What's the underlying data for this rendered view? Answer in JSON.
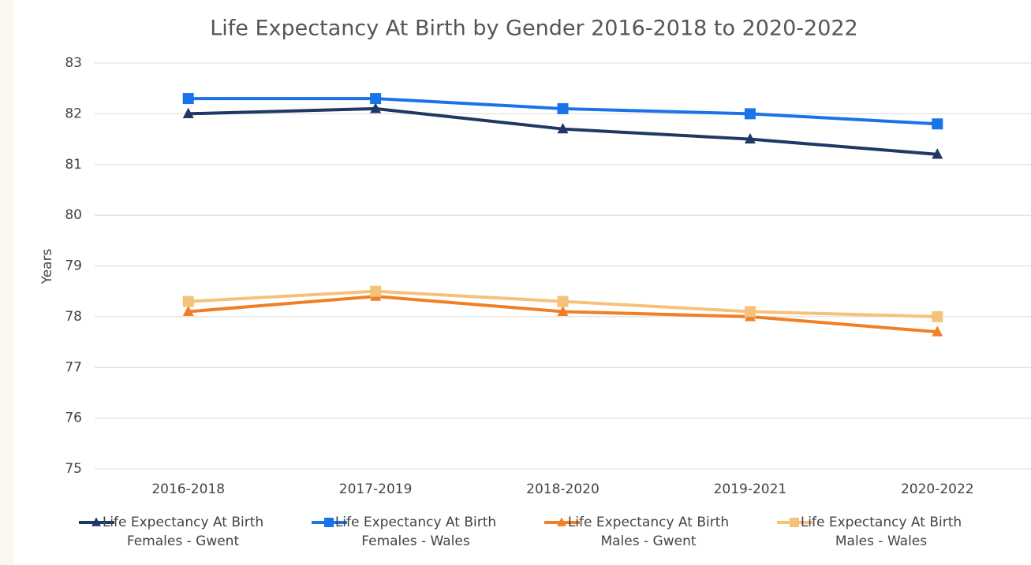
{
  "chart_data": {
    "type": "line",
    "title": "Life Expectancy At Birth by Gender 2016-2018 to 2020-2022",
    "ylabel": "Years",
    "categories": [
      "2016-2018",
      "2017-2019",
      "2018-2020",
      "2019-2021",
      "2020-2022"
    ],
    "series": [
      {
        "name": "Life Expectancy At Birth\nFemales - Gwent",
        "color": "#1f3864",
        "marker": "triangle",
        "values": [
          82.0,
          82.1,
          81.7,
          81.5,
          81.2
        ]
      },
      {
        "name": "Life Expectancy At Birth\nFemales - Wales",
        "color": "#1a73e8",
        "marker": "square",
        "values": [
          82.3,
          82.3,
          82.1,
          82.0,
          81.8
        ]
      },
      {
        "name": "Life Expectancy At Birth\nMales - Gwent",
        "color": "#f07f26",
        "marker": "triangle",
        "values": [
          78.1,
          78.4,
          78.1,
          78.0,
          77.7
        ]
      },
      {
        "name": "Life Expectancy At Birth\nMales - Wales",
        "color": "#f4c27a",
        "marker": "square",
        "values": [
          78.3,
          78.5,
          78.3,
          78.1,
          78.0
        ]
      }
    ],
    "ylim": [
      75,
      83
    ],
    "yticks": [
      75,
      76,
      77,
      78,
      79,
      80,
      81,
      82,
      83
    ],
    "grid": true,
    "legend": "bottom"
  }
}
